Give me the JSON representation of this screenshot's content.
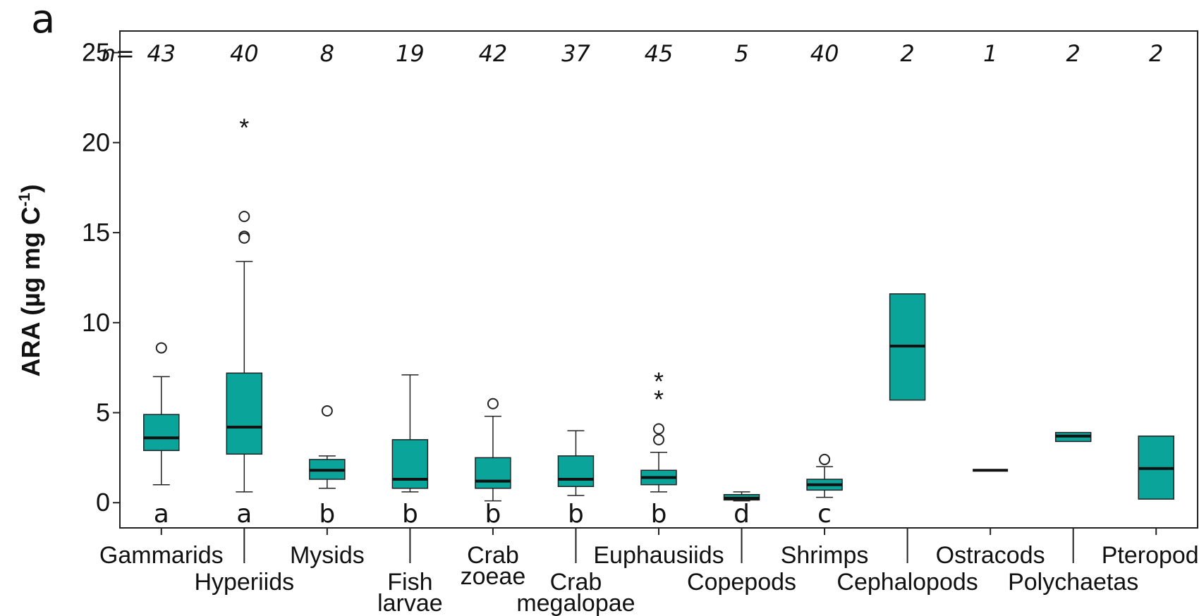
{
  "panel_label": "a",
  "chart_data": {
    "type": "boxplot",
    "ylabel": "ARA (µg mg C",
    "ylabel_sup": "-1",
    "ylabel_close": ")",
    "ylim": [
      -1.4,
      26.2
    ],
    "yticks": [
      "0",
      "5",
      "10",
      "15",
      "20",
      "25"
    ],
    "n_prefix": "n=",
    "box_color": "#0aa49a",
    "groups": [
      {
        "label": [
          "Gammarids"
        ],
        "row": 1,
        "n": "43",
        "sig": "a",
        "min": 1.0,
        "q1": 2.9,
        "median": 3.6,
        "q3": 4.9,
        "max": 7.0,
        "outliers": [
          8.6
        ],
        "extremes": []
      },
      {
        "label": [
          "Hyperiids"
        ],
        "row": 2,
        "n": "40",
        "sig": "a",
        "min": 0.6,
        "q1": 2.7,
        "median": 4.2,
        "q3": 7.2,
        "max": 13.4,
        "outliers": [
          15.9,
          14.8,
          14.7
        ],
        "extremes": [
          20.9
        ]
      },
      {
        "label": [
          "Mysids"
        ],
        "row": 1,
        "n": "8",
        "sig": "b",
        "min": 0.8,
        "q1": 1.3,
        "median": 1.8,
        "q3": 2.4,
        "max": 2.6,
        "outliers": [
          5.1
        ],
        "extremes": []
      },
      {
        "label": [
          "Fish",
          "larvae"
        ],
        "row": 2,
        "n": "19",
        "sig": "b",
        "min": 0.6,
        "q1": 0.8,
        "median": 1.3,
        "q3": 3.5,
        "max": 7.1,
        "outliers": [],
        "extremes": []
      },
      {
        "label": [
          "Crab",
          "zoeae"
        ],
        "row": 1,
        "n": "42",
        "sig": "b",
        "min": 0.1,
        "q1": 0.8,
        "median": 1.2,
        "q3": 2.5,
        "max": 4.8,
        "outliers": [
          5.5
        ],
        "extremes": []
      },
      {
        "label": [
          "Crab",
          "megalopae"
        ],
        "row": 2,
        "n": "37",
        "sig": "b",
        "min": 0.4,
        "q1": 0.9,
        "median": 1.3,
        "q3": 2.6,
        "max": 4.0,
        "outliers": [],
        "extremes": []
      },
      {
        "label": [
          "Euphausiids"
        ],
        "row": 1,
        "n": "45",
        "sig": "b",
        "min": 0.6,
        "q1": 1.0,
        "median": 1.4,
        "q3": 1.8,
        "max": 2.8,
        "outliers": [
          4.1,
          3.5
        ],
        "extremes": [
          6.8,
          5.8
        ]
      },
      {
        "label": [
          "Copepods"
        ],
        "row": 2,
        "n": "5",
        "sig": "d",
        "min": 0.1,
        "q1": 0.15,
        "median": 0.25,
        "q3": 0.45,
        "max": 0.6,
        "outliers": [],
        "extremes": []
      },
      {
        "label": [
          "Shrimps"
        ],
        "row": 1,
        "n": "40",
        "sig": "c",
        "min": 0.3,
        "q1": 0.7,
        "median": 1.0,
        "q3": 1.3,
        "max": 2.0,
        "outliers": [
          2.4
        ],
        "extremes": []
      },
      {
        "label": [
          "Cephalopods"
        ],
        "row": 2,
        "n": "2",
        "sig": "",
        "min": 5.7,
        "q1": 5.7,
        "median": 8.7,
        "q3": 11.6,
        "max": 11.6,
        "outliers": [],
        "extremes": []
      },
      {
        "label": [
          "Ostracods"
        ],
        "row": 1,
        "n": "1",
        "sig": "",
        "min": 1.8,
        "q1": 1.8,
        "median": 1.8,
        "q3": 1.8,
        "max": 1.8,
        "outliers": [],
        "extremes": []
      },
      {
        "label": [
          "Polychaetas"
        ],
        "row": 2,
        "n": "2",
        "sig": "",
        "min": 3.4,
        "q1": 3.4,
        "median": 3.7,
        "q3": 3.9,
        "max": 3.9,
        "outliers": [],
        "extremes": []
      },
      {
        "label": [
          "Pteropods"
        ],
        "row": 1,
        "n": "2",
        "sig": "",
        "min": 0.2,
        "q1": 0.2,
        "median": 1.9,
        "q3": 3.7,
        "max": 3.7,
        "outliers": [],
        "extremes": []
      }
    ]
  }
}
